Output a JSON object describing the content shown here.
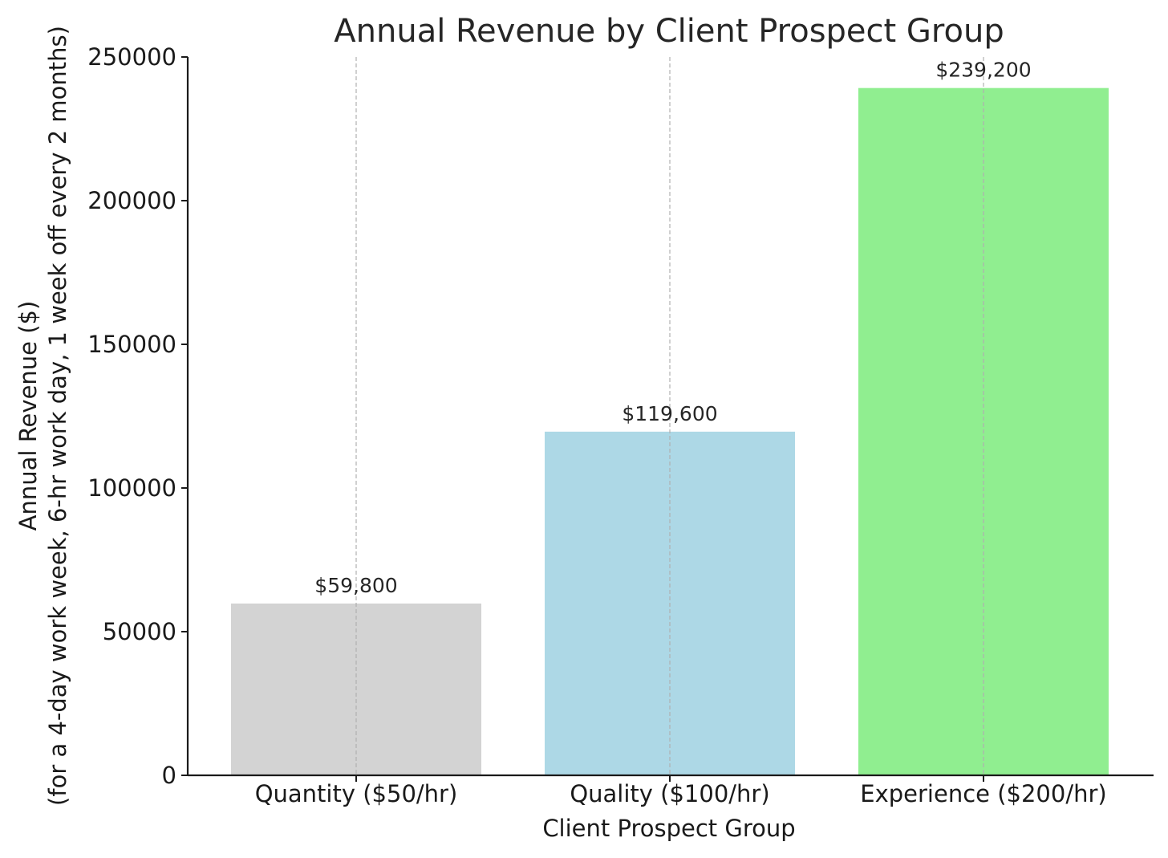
{
  "chart_data": {
    "type": "bar",
    "title": "Annual Revenue by Client Prospect Group",
    "xlabel": "Client Prospect Group",
    "ylabel": [
      "Annual Revenue ($)",
      "(for a 4-day work week, 6-hr work day, 1 week off every 2 months)"
    ],
    "categories": [
      "Quantity ($50/hr)",
      "Quality ($100/hr)",
      "Experience ($200/hr)"
    ],
    "values": [
      59800,
      119600,
      239200
    ],
    "value_labels": [
      "$59,800",
      "$119,600",
      "$239,200"
    ],
    "colors": [
      "#d3d3d3",
      "#add8e6",
      "#90ee90"
    ],
    "ylim": [
      0,
      250000
    ],
    "yticks": [
      0,
      50000,
      100000,
      150000,
      200000,
      250000
    ],
    "ytick_labels": [
      "0",
      "50000",
      "100000",
      "150000",
      "200000",
      "250000"
    ],
    "grid": "vertical dashed lines at categories",
    "legend": "none"
  }
}
